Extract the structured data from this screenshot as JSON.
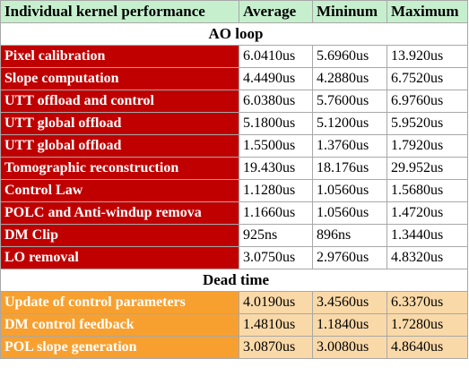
{
  "colors": {
    "header_bg": "#c6efce",
    "header_text": "#006100",
    "ao_label_bg": "#c00000",
    "dead_label_bg": "#f7a030",
    "dead_value_bg": "#fad9a8"
  },
  "header": {
    "title": "Individual kernel performance",
    "average": "Average",
    "minimum": "Mininum",
    "maximum": "Maximum"
  },
  "sections": [
    {
      "title": "AO loop",
      "rows": [
        {
          "name": "Pixel calibration",
          "avg": "6.0410us",
          "min": "5.6960us",
          "max": "13.920us"
        },
        {
          "name": "Slope computation",
          "avg": "4.4490us",
          "min": "4.2880us",
          "max": "6.7520us"
        },
        {
          "name": "UTT offload and control",
          "avg": "6.0380us",
          "min": "5.7600us",
          "max": "6.9760us"
        },
        {
          "name": "UTT global offload",
          "avg": "5.1800us",
          "min": "5.1200us",
          "max": "5.9520us"
        },
        {
          "name": "UTT global offload",
          "avg": "1.5500us",
          "min": "1.3760us",
          "max": "1.7920us"
        },
        {
          "name": "Tomographic reconstruction",
          "avg": "19.430us",
          "min": "18.176us",
          "max": "29.952us"
        },
        {
          "name": "Control Law",
          "avg": "1.1280us",
          "min": "1.0560us",
          "max": "1.5680us"
        },
        {
          "name": "POLC and Anti-windup remova",
          "avg": "1.1660us",
          "min": "1.0560us",
          "max": "1.4720us"
        },
        {
          "name": "DM Clip",
          "avg": "925ns",
          "min": "896ns",
          "max": "1.3440us"
        },
        {
          "name": "LO removal",
          "avg": "3.0750us",
          "min": "2.9760us",
          "max": "4.8320us"
        }
      ]
    },
    {
      "title": "Dead time",
      "rows": [
        {
          "name": "Update of control parameters",
          "avg": "4.0190us",
          "min": "3.4560us",
          "max": "6.3370us"
        },
        {
          "name": "DM control feedback",
          "avg": "1.4810us",
          "min": "1.1840us",
          "max": "1.7280us"
        },
        {
          "name": "POL slope generation",
          "avg": "3.0870us",
          "min": "3.0080us",
          "max": "4.8640us"
        }
      ]
    }
  ]
}
